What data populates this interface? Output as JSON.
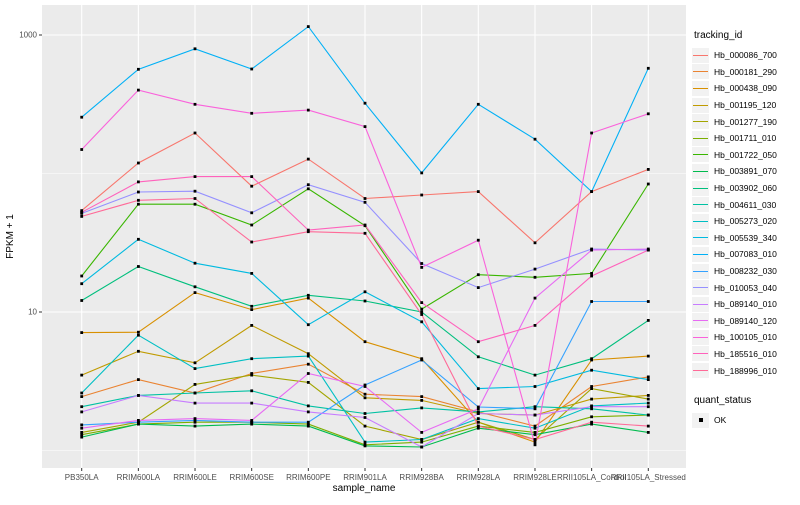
{
  "figure": {
    "background": "#ffffff",
    "panel_background": "#ebebeb",
    "grid_color": "#ffffff",
    "tick_text_color": "#4d4d4d",
    "marker_color": "#000000"
  },
  "axes": {
    "x_title": "sample_name",
    "y_title": "FPKM + 1"
  },
  "legend": {
    "tracking_title": "tracking_id",
    "quant_title": "quant_status",
    "quant_items": [
      {
        "label": "OK",
        "shape": "black-square"
      }
    ]
  },
  "chart_data": {
    "type": "line",
    "title": "",
    "xlabel": "sample_name",
    "ylabel": "FPKM + 1",
    "y_scale": "log10",
    "y_major_breaks": [
      10,
      1000
    ],
    "y_minor_breaks": [
      1,
      100
    ],
    "y_tick_labels": [
      "10",
      "1000"
    ],
    "ylim_log": [
      0.85,
      1520
    ],
    "grid": true,
    "legend_position": "right",
    "marker": "small-black-square",
    "categories": [
      "PB350LA",
      "RRIM600LA",
      "RRIM600LE",
      "RRIM600SE",
      "RRIM600PE",
      "RRIM901LA",
      "RRIM928BA",
      "RRIM928LA",
      "RRIM928LE",
      "RRII105LA_Control",
      "RRII105LA_Stressed"
    ],
    "series": [
      {
        "name": "Hb_000086_700",
        "color": "#F8766D",
        "values": [
          54,
          119,
          196,
          81,
          127,
          66,
          70,
          74,
          31.6,
          74,
          107
        ]
      },
      {
        "name": "Hb_000181_290",
        "color": "#EA8331",
        "values": [
          2.45,
          3.25,
          2.6,
          3.6,
          4.2,
          2.55,
          2.45,
          1.9,
          1.5,
          2.9,
          3.4
        ]
      },
      {
        "name": "Hb_000438_090",
        "color": "#D89000",
        "values": [
          7.1,
          7.15,
          13.8,
          10.4,
          12.6,
          6.1,
          4.6,
          1.6,
          1.15,
          4.5,
          4.8
        ]
      },
      {
        "name": "Hb_001195_120",
        "color": "#C09B00",
        "values": [
          3.5,
          5.2,
          4.3,
          8.0,
          5.0,
          2.4,
          2.3,
          1.85,
          1.8,
          2.35,
          2.5
        ]
      },
      {
        "name": "Hb_001277_190",
        "color": "#A3A500",
        "values": [
          1.35,
          1.6,
          3.0,
          3.5,
          3.1,
          1.5,
          1.2,
          1.6,
          1.2,
          2.8,
          2.35
        ]
      },
      {
        "name": "Hb_001711_010",
        "color": "#7CAE00",
        "values": [
          1.3,
          1.55,
          1.6,
          1.6,
          1.55,
          1.1,
          1.15,
          1.5,
          1.35,
          1.75,
          1.8
        ]
      },
      {
        "name": "Hb_001722_050",
        "color": "#39B600",
        "values": [
          18.2,
          60,
          60,
          42.5,
          77.5,
          42,
          10.5,
          18.6,
          17.8,
          19,
          84
        ]
      },
      {
        "name": "Hb_003891_070",
        "color": "#00BB4E",
        "values": [
          1.25,
          1.55,
          1.5,
          1.55,
          1.5,
          1.08,
          1.06,
          1.45,
          1.3,
          1.55,
          1.35
        ]
      },
      {
        "name": "Hb_003902_060",
        "color": "#00BF7D",
        "values": [
          12.1,
          21.3,
          15.2,
          11,
          13.2,
          12,
          10,
          4.75,
          3.5,
          4.6,
          8.7
        ]
      },
      {
        "name": "Hb_004611_030",
        "color": "#00C1A3",
        "values": [
          2.07,
          2.5,
          2.6,
          2.7,
          2.1,
          1.85,
          2.03,
          1.9,
          2.07,
          2.0,
          1.8
        ]
      },
      {
        "name": "Hb_005273_020",
        "color": "#00BFC4",
        "values": [
          2.6,
          6.8,
          3.9,
          4.6,
          4.8,
          1.15,
          1.2,
          1.7,
          1.45,
          2.1,
          2.2
        ]
      },
      {
        "name": "Hb_005539_340",
        "color": "#00BAE0",
        "values": [
          16,
          33.5,
          22.5,
          19,
          8.1,
          14,
          8.5,
          2.8,
          2.9,
          3.8,
          3.25
        ]
      },
      {
        "name": "Hb_007083_010",
        "color": "#00B0F6",
        "values": [
          255,
          565,
          795,
          568,
          1150,
          322,
          101,
          316,
          177,
          74,
          575
        ]
      },
      {
        "name": "Hb_008232_030",
        "color": "#35A2FF",
        "values": [
          1.53,
          1.6,
          1.65,
          1.6,
          1.6,
          2.97,
          4.5,
          2.06,
          2.0,
          11.9,
          11.9
        ]
      },
      {
        "name": "Hb_010053_040",
        "color": "#9590FF",
        "values": [
          51.5,
          73.5,
          74.5,
          52,
          83,
          62,
          22.4,
          15,
          20.4,
          28.5,
          28
        ]
      },
      {
        "name": "Hb_089140_010",
        "color": "#C77CFF",
        "values": [
          1.9,
          2.5,
          2.2,
          2.2,
          1.9,
          1.73,
          1.06,
          1.85,
          1.8,
          2.07,
          2.07
        ]
      },
      {
        "name": "Hb_089140_120",
        "color": "#E76BF3",
        "values": [
          1.45,
          1.65,
          1.7,
          1.65,
          3.6,
          2.9,
          1.35,
          2.0,
          12.6,
          28,
          28.5
        ]
      },
      {
        "name": "Hb_100105_010",
        "color": "#FA62DB",
        "values": [
          149,
          400,
          316,
          272,
          287,
          218,
          21,
          33,
          1.1,
          196,
          270
        ]
      },
      {
        "name": "Hb_185516_010",
        "color": "#FF62BC",
        "values": [
          52.5,
          87,
          95,
          95,
          39,
          42.5,
          11.7,
          6.1,
          8.0,
          18.2,
          28
        ]
      },
      {
        "name": "Hb_188996_010",
        "color": "#FF6A98",
        "values": [
          49,
          64,
          66,
          32,
          38,
          37,
          9.6,
          1.5,
          1.2,
          1.6,
          1.5
        ]
      }
    ]
  }
}
